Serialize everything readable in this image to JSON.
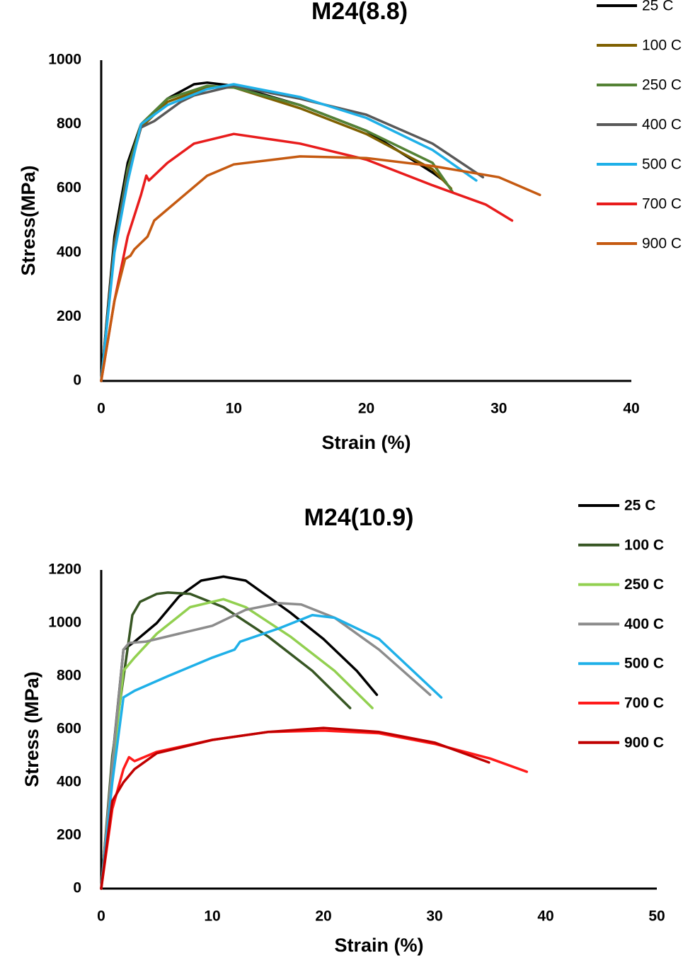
{
  "chart_data": [
    {
      "type": "line",
      "title": "M24(8.8)",
      "x_label": "Strain (%)",
      "y_label": "Stress(MPa)",
      "xlim": [
        0,
        40
      ],
      "xticks": [
        0,
        10,
        20,
        30,
        40
      ],
      "ylim": [
        0,
        1000
      ],
      "yticks": [
        0,
        200,
        400,
        600,
        800,
        1000
      ],
      "grid": false,
      "legend": "right",
      "series": [
        {
          "name": "25 C",
          "color": "#000000",
          "x": [
            0,
            1,
            2,
            3,
            5,
            7,
            8,
            10,
            15,
            20,
            25,
            26
          ],
          "values": [
            0,
            450,
            680,
            800,
            880,
            925,
            930,
            920,
            860,
            780,
            650,
            620
          ]
        },
        {
          "name": "100 C",
          "color": "#7f6000",
          "x": [
            0,
            1,
            2,
            3,
            5,
            8,
            10,
            15,
            20,
            25,
            26.4
          ],
          "values": [
            0,
            430,
            650,
            790,
            870,
            915,
            915,
            850,
            770,
            660,
            600
          ]
        },
        {
          "name": "250 C",
          "color": "#548235",
          "x": [
            0,
            1,
            2,
            3,
            5,
            8,
            10,
            15,
            20,
            25,
            26.5
          ],
          "values": [
            0,
            420,
            660,
            800,
            880,
            920,
            915,
            860,
            780,
            680,
            590
          ]
        },
        {
          "name": "400 C",
          "color": "#595959",
          "x": [
            0,
            1,
            2,
            3,
            4,
            6,
            7,
            9,
            10,
            15,
            20,
            25,
            28.8
          ],
          "values": [
            0,
            420,
            640,
            790,
            810,
            870,
            890,
            910,
            920,
            880,
            830,
            740,
            635
          ]
        },
        {
          "name": "500 C",
          "color": "#1fb0e8",
          "x": [
            0,
            1,
            2,
            3,
            5,
            8,
            10,
            15,
            20,
            25,
            28.3
          ],
          "values": [
            0,
            400,
            620,
            800,
            860,
            910,
            925,
            885,
            820,
            720,
            625
          ]
        },
        {
          "name": "700 C",
          "color": "#e81c1c",
          "x": [
            0,
            1,
            2,
            3,
            3.4,
            3.6,
            5,
            7,
            10,
            15,
            20,
            25,
            29,
            31
          ],
          "values": [
            0,
            250,
            450,
            580,
            640,
            625,
            680,
            740,
            770,
            740,
            690,
            610,
            550,
            500
          ]
        },
        {
          "name": "900 C",
          "color": "#c55a11",
          "x": [
            0,
            1,
            1.8,
            2.2,
            2.5,
            3.5,
            4,
            6,
            8,
            10,
            15,
            20,
            25,
            30,
            33.1
          ],
          "values": [
            0,
            250,
            380,
            390,
            410,
            450,
            500,
            570,
            640,
            675,
            700,
            695,
            670,
            635,
            580
          ]
        }
      ]
    },
    {
      "type": "line",
      "title": "M24(10.9)",
      "x_label": "Strain (%)",
      "y_label": "Stress (MPa)",
      "xlim": [
        0,
        50
      ],
      "xticks": [
        0,
        10,
        20,
        30,
        40,
        50
      ],
      "ylim": [
        0,
        1200
      ],
      "yticks": [
        0,
        200,
        400,
        600,
        800,
        1000,
        1200
      ],
      "grid": false,
      "legend": "right",
      "series": [
        {
          "name": "25 C",
          "color": "#000000",
          "x": [
            0,
            1,
            2,
            3,
            5,
            7,
            9,
            11,
            13,
            17,
            20,
            23,
            24.8
          ],
          "values": [
            0,
            480,
            900,
            930,
            1000,
            1100,
            1160,
            1175,
            1160,
            1040,
            940,
            820,
            730
          ]
        },
        {
          "name": "100 C",
          "color": "#375623",
          "x": [
            0,
            1,
            2.8,
            3.5,
            5,
            6,
            8,
            11,
            15,
            19,
            22.4
          ],
          "values": [
            0,
            500,
            1030,
            1080,
            1110,
            1115,
            1110,
            1060,
            950,
            820,
            680
          ]
        },
        {
          "name": "250 C",
          "color": "#92d050",
          "x": [
            0,
            1,
            2,
            3,
            5,
            8,
            11,
            13,
            17,
            21,
            24.4
          ],
          "values": [
            0,
            450,
            820,
            870,
            960,
            1060,
            1090,
            1060,
            950,
            820,
            680
          ]
        },
        {
          "name": "400 C",
          "color": "#8c8c8c",
          "x": [
            0,
            1,
            2,
            2.5,
            4,
            7,
            10,
            13,
            16,
            18,
            21,
            25,
            29.6
          ],
          "values": [
            0,
            470,
            900,
            925,
            930,
            960,
            990,
            1050,
            1075,
            1070,
            1020,
            900,
            730
          ]
        },
        {
          "name": "500 C",
          "color": "#1fb0e8",
          "x": [
            0,
            1,
            2,
            3,
            6,
            10,
            12,
            12.5,
            16,
            19,
            21,
            25,
            30.6
          ],
          "values": [
            0,
            400,
            720,
            745,
            800,
            870,
            900,
            930,
            980,
            1030,
            1020,
            940,
            720
          ]
        },
        {
          "name": "700 C",
          "color": "#ff1a1a",
          "x": [
            0,
            1,
            2,
            2.5,
            3,
            5,
            10,
            15,
            20,
            25,
            30,
            35,
            38.3
          ],
          "values": [
            0,
            300,
            450,
            495,
            480,
            515,
            560,
            590,
            595,
            585,
            545,
            490,
            440
          ]
        },
        {
          "name": "900 C",
          "color": "#c00000",
          "x": [
            0,
            1,
            2,
            3,
            5,
            10,
            15,
            20,
            25,
            30,
            34.9
          ],
          "values": [
            0,
            330,
            400,
            450,
            510,
            560,
            590,
            605,
            590,
            550,
            475
          ]
        }
      ]
    }
  ]
}
